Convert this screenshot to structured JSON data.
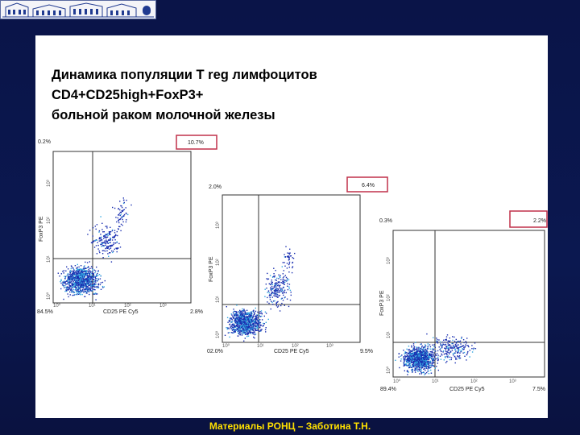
{
  "slide": {
    "title_lines": [
      "Динамика популяции T reg лимфоцитов",
      "CD4+CD25high+FoxP3+",
      "больной раком молочной железы"
    ],
    "footer": "Материалы РОНЦ – Заботина Т.Н."
  },
  "colors": {
    "background": "#0b1850",
    "footer_text": "#ffe000",
    "highlight_box": "#c0304a",
    "dots_dark": "#1a2fb0",
    "dots_light": "#2fa6e0"
  },
  "plots": [
    {
      "top_left": "0.2%",
      "top_right": "10.7%",
      "bottom_left": "84.5%",
      "bottom_right": "2.8%",
      "xlabel": "CD25 PE Cy5",
      "ylabel": "FoxP3 PE",
      "xticks": [
        "10⁰",
        "10¹",
        "10²",
        "10³"
      ],
      "yticks": [
        "10⁰",
        "10¹",
        "10²",
        "10³"
      ]
    },
    {
      "top_left": "2.0%",
      "top_right": "6.4%",
      "bottom_left": "02.0%",
      "bottom_right": "9.5%",
      "xlabel": "CD25 PE Cy5",
      "ylabel": "FoxP3 PE",
      "xticks": [
        "10⁰",
        "10¹",
        "10²",
        "10³"
      ],
      "yticks": [
        "10⁰",
        "10¹",
        "10²",
        "10³"
      ]
    },
    {
      "top_left": "0.3%",
      "top_right": "2.2%",
      "bottom_left": "89.4%",
      "bottom_right": "7.5%",
      "xlabel": "CD25 PE Cy5",
      "ylabel": "FoxP3 PE",
      "xticks": [
        "10⁰",
        "10¹",
        "10²",
        "10³"
      ],
      "yticks": [
        "10⁰",
        "10¹",
        "10²",
        "10³"
      ]
    }
  ]
}
